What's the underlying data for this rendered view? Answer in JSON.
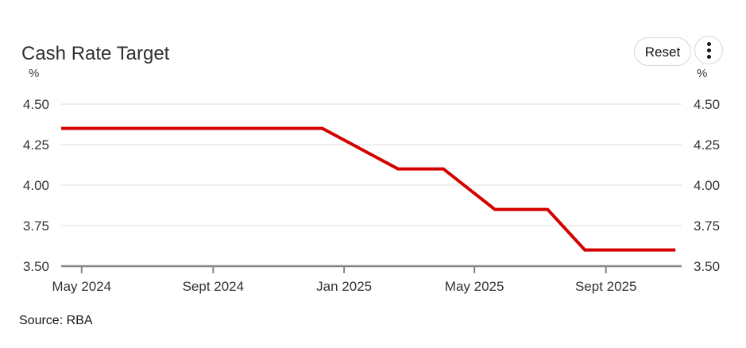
{
  "header": {
    "title": "Cash Rate Target",
    "reset_button_label": "Reset"
  },
  "colors": {
    "line": "#d40000",
    "grid": "#e8e8e8",
    "axis": "#848484",
    "tick_text": "#333333"
  },
  "chart_data": {
    "type": "line",
    "title": "Cash Rate Target",
    "y_unit_left": "%",
    "y_unit_right": "%",
    "ylim": [
      3.5,
      4.5
    ],
    "yticks": [
      {
        "label": "4.50",
        "value": 4.5
      },
      {
        "label": "4.25",
        "value": 4.25
      },
      {
        "label": "4.00",
        "value": 4.0
      },
      {
        "label": "3.75",
        "value": 3.75
      },
      {
        "label": "3.50",
        "value": 3.5
      }
    ],
    "xticks": [
      {
        "label": "May 2024",
        "f": 0.033
      },
      {
        "label": "Sept 2024",
        "f": 0.245
      },
      {
        "label": "Jan 2025",
        "f": 0.456
      },
      {
        "label": "May 2025",
        "f": 0.666
      },
      {
        "label": "Sept 2025",
        "f": 0.878
      }
    ],
    "grid": true,
    "legend_position": "none",
    "series": [
      {
        "name": "Cash Rate Target",
        "color": "#d40000",
        "points": [
          {
            "date": "Apr 2024",
            "value": 4.35,
            "f": 0.0
          },
          {
            "date": "Dec 2024",
            "value": 4.35,
            "f": 0.421
          },
          {
            "date": "Feb 2025",
            "value": 4.1,
            "f": 0.543
          },
          {
            "date": "Apr 2025",
            "value": 4.1,
            "f": 0.616
          },
          {
            "date": "May 2025",
            "value": 3.85,
            "f": 0.699
          },
          {
            "date": "Jul 2025",
            "value": 3.85,
            "f": 0.784
          },
          {
            "date": "Aug 2025",
            "value": 3.6,
            "f": 0.844
          },
          {
            "date": "Nov 2025",
            "value": 3.6,
            "f": 0.99
          }
        ]
      }
    ],
    "source": "Source: RBA"
  }
}
